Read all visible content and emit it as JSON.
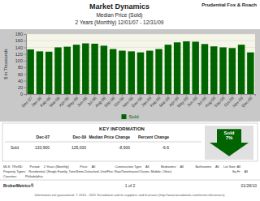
{
  "chart_data": {
    "type": "bar",
    "title": "Market Dynamics",
    "subtitle": [
      "Median Price (Sold)",
      "2 Years (Monthly) 12/01/07 - 12/31/09"
    ],
    "categories": [
      "Dec-07",
      "Jan-08",
      "Feb-08",
      "Mar-08",
      "Apr-08",
      "May-08",
      "Jun-08",
      "Jul-08",
      "Aug-08",
      "Sep-08",
      "Oct-08",
      "Nov-08",
      "Dec-08",
      "Jan-09",
      "Feb-09",
      "Mar-09",
      "Apr-09",
      "May-09",
      "Jun-09",
      "Jul-09",
      "Aug-09",
      "Sep-09",
      "Oct-09",
      "Nov-09",
      "Dec-09"
    ],
    "series": [
      {
        "name": "Sold",
        "color": "#006400",
        "values": [
          133.9,
          128,
          127,
          140,
          142,
          148,
          152,
          151,
          145,
          135,
          130,
          128,
          125,
          130,
          135,
          148,
          155,
          158,
          157,
          150,
          143,
          140,
          138,
          148,
          125
        ]
      }
    ],
    "ylabel": "$ in Thousands",
    "ylim": [
      0,
      180
    ],
    "yticks": [
      0,
      20,
      40,
      60,
      80,
      100,
      120,
      140,
      160,
      180
    ],
    "grid": true,
    "legend": "bottom",
    "annotations": [
      "Prudential Fox & Roach",
      "KEY INFORMATION",
      "Dec-07",
      "Dec-09",
      "Median Price Change",
      "Percent Change",
      "Sold",
      "133,900",
      "125,000",
      "-8,900",
      "-6.6",
      "Sold\n7%",
      "MLS: TReND        Period:    2 Years (Monthly)            Price:    All                      Construction Type:    All             Bedrooms:    All             Bathrooms:    All     Lot Size: All",
      "Property Types:   Residential: (Single Family, Twin/Semi-Detached, Unit/Flat, Row/Townhouse/Cluster, Mobile, Other)                                                                   Sq Ft:    All",
      "Counties:         Philadelphia",
      "BrokerMetrics®",
      "1 of 2",
      "01/28/10",
      "Information not guaranteed. © 2010 - 2011 Terradatum and its suppliers and licensors (http://www.terradatum.com/metrics/licensors)."
    ]
  }
}
